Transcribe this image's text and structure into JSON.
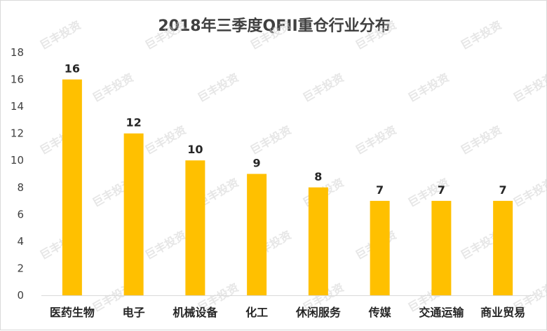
{
  "chart_data": {
    "type": "bar",
    "title": "2018年三季度QFII重仓行业分布",
    "categories": [
      "医药生物",
      "电子",
      "机械设备",
      "化工",
      "休闲服务",
      "传媒",
      "交通运输",
      "商业贸易"
    ],
    "values": [
      16,
      12,
      10,
      9,
      8,
      7,
      7,
      7
    ],
    "ylim": [
      0,
      18
    ],
    "yticks": [
      0,
      2,
      4,
      6,
      8,
      10,
      12,
      14,
      16,
      18
    ],
    "bar_color": "#FFC000",
    "grid": false,
    "legend": "none"
  },
  "watermark": {
    "text": "巨丰投资"
  }
}
